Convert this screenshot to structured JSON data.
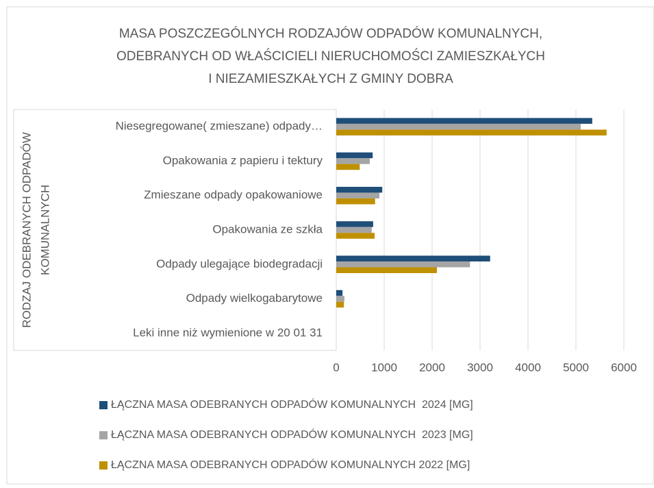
{
  "chart_data": {
    "type": "hbar",
    "title": [
      "MASA POSZCZEGÓLNYCH RODZAJÓW ODPADÓW KOMUNALNYCH,",
      "ODEBRANYCH OD WŁAŚCICIELI NIERUCHOMOŚCI ZAMIESZKAŁYCH",
      "I NIEZAMIESZKAŁYCH Z GMINY DOBRA"
    ],
    "ylabel": [
      "RODZAJ ODEBRANYCH ODPADÓW",
      "KOMUNALNYCH"
    ],
    "categories": [
      "Niesegregowane( zmieszane) odpady…",
      "Opakowania z papieru i tektury",
      "Zmieszane odpady opakowaniowe",
      "Opakowania ze szkła",
      "Odpady ulegające biodegradacji",
      "Odpady wielkogabarytowe",
      "Leki inne niż wymienione w 20 01 31"
    ],
    "series": [
      {
        "name": "ŁĄCZNA MASA ODEBRANYCH ODPADÓW KOMUNALNYCH  2024 [MG]",
        "color": "#1f4e79",
        "values": [
          5340,
          760,
          960,
          770,
          3210,
          130,
          0
        ]
      },
      {
        "name": "ŁĄCZNA MASA ODEBRANYCH ODPADÓW KOMUNALNYCH  2023 [MG]",
        "color": "#a5a5a5",
        "values": [
          5100,
          700,
          900,
          740,
          2790,
          170,
          0
        ]
      },
      {
        "name": "ŁĄCZNA MASA ODEBRANYCH ODPADÓW KOMUNALNYCH 2022 [MG]",
        "color": "#bf9000",
        "values": [
          5640,
          490,
          810,
          800,
          2100,
          160,
          0
        ]
      }
    ],
    "xlim": [
      0,
      6000
    ],
    "xticks": [
      0,
      1000,
      2000,
      3000,
      4000,
      5000,
      6000
    ],
    "grid": true,
    "legend": "bottom"
  }
}
